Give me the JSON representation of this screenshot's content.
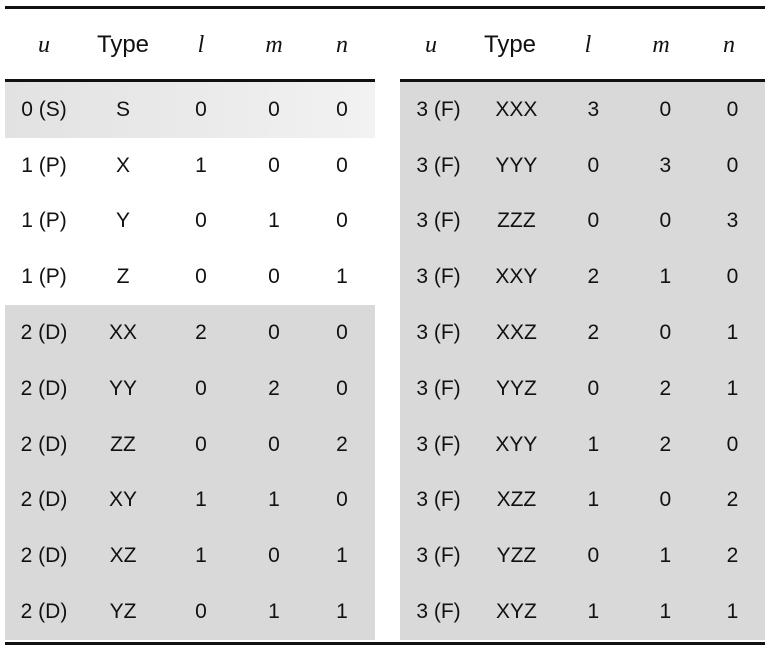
{
  "headers": [
    "u",
    "Type",
    "l",
    "m",
    "n"
  ],
  "left_rows": [
    [
      "0 (S)",
      "S",
      "0",
      "0",
      "0"
    ],
    [
      "1 (P)",
      "X",
      "1",
      "0",
      "0"
    ],
    [
      "1 (P)",
      "Y",
      "0",
      "1",
      "0"
    ],
    [
      "1 (P)",
      "Z",
      "0",
      "0",
      "1"
    ],
    [
      "2 (D)",
      "XX",
      "2",
      "0",
      "0"
    ],
    [
      "2 (D)",
      "YY",
      "0",
      "2",
      "0"
    ],
    [
      "2 (D)",
      "ZZ",
      "0",
      "0",
      "2"
    ],
    [
      "2 (D)",
      "XY",
      "1",
      "1",
      "0"
    ],
    [
      "2 (D)",
      "XZ",
      "1",
      "0",
      "1"
    ],
    [
      "2 (D)",
      "YZ",
      "0",
      "1",
      "1"
    ]
  ],
  "right_rows": [
    [
      "3 (F)",
      "XXX",
      "3",
      "0",
      "0"
    ],
    [
      "3 (F)",
      "YYY",
      "0",
      "3",
      "0"
    ],
    [
      "3 (F)",
      "ZZZ",
      "0",
      "0",
      "3"
    ],
    [
      "3 (F)",
      "XXY",
      "2",
      "1",
      "0"
    ],
    [
      "3 (F)",
      "XXZ",
      "2",
      "0",
      "1"
    ],
    [
      "3 (F)",
      "YYZ",
      "0",
      "2",
      "1"
    ],
    [
      "3 (F)",
      "XYY",
      "1",
      "2",
      "0"
    ],
    [
      "3 (F)",
      "XZZ",
      "1",
      "0",
      "2"
    ],
    [
      "3 (F)",
      "YZZ",
      "0",
      "1",
      "2"
    ],
    [
      "3 (F)",
      "XYZ",
      "1",
      "1",
      "1"
    ]
  ],
  "colors": {
    "shade": "#d9d9d9",
    "rule": "#111111"
  }
}
